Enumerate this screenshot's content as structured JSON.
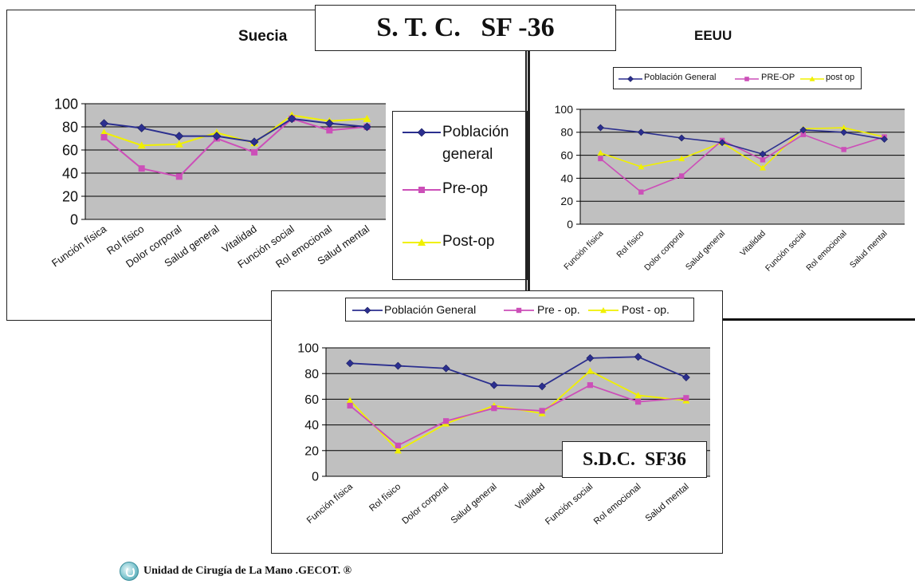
{
  "main_title": "S. T. C.   SF -36",
  "footer_text": "Unidad de Cirugía de La Mano .GECOT. ®",
  "colors": {
    "general": "#2b2f8f",
    "pre": "#cc4fb8",
    "post": "#f0f000",
    "plot_bg": "#c0c0c0"
  },
  "chart_data": [
    {
      "id": "suecia",
      "type": "line",
      "title": "Suecia",
      "categories": [
        "Función física",
        "Rol físico",
        "Dolor corporal",
        "Salud general",
        "Vitalidad",
        "Función social",
        "Rol emocional",
        "Salud mental"
      ],
      "ylim": [
        0,
        100
      ],
      "yticks": [
        0,
        20,
        40,
        60,
        80,
        100
      ],
      "grid": true,
      "legend_position": "right",
      "series": [
        {
          "key": "general",
          "name": "Población general",
          "marker": "diamond",
          "values": [
            83,
            79,
            72,
            72,
            67,
            87,
            83,
            80
          ]
        },
        {
          "key": "pre",
          "name": "Pre-op",
          "marker": "square",
          "values": [
            71,
            44,
            37,
            70,
            58,
            87,
            77,
            80
          ]
        },
        {
          "key": "post",
          "name": "Post-op",
          "marker": "triangle",
          "values": [
            75,
            64,
            65,
            75,
            66,
            90,
            85,
            87
          ]
        }
      ]
    },
    {
      "id": "eeuu",
      "type": "line",
      "title": "EEUU",
      "categories": [
        "Función física",
        "Rol físico",
        "Dolor corporal",
        "Salud general",
        "Vitalidad",
        "Función social",
        "Rol emocional",
        "Salud mental"
      ],
      "ylim": [
        0,
        100
      ],
      "yticks": [
        0,
        20,
        40,
        60,
        80,
        100
      ],
      "grid": true,
      "legend_position": "top",
      "series": [
        {
          "key": "general",
          "name": "Población General",
          "marker": "diamond",
          "values": [
            84,
            80,
            75,
            71,
            61,
            82,
            80,
            74
          ]
        },
        {
          "key": "pre",
          "name": "PRE-OP",
          "marker": "square",
          "values": [
            57,
            28,
            42,
            73,
            56,
            78,
            65,
            76
          ]
        },
        {
          "key": "post",
          "name": "post op",
          "marker": "triangle",
          "values": [
            62,
            50,
            57,
            71,
            49,
            83,
            84,
            76
          ]
        }
      ]
    },
    {
      "id": "sdc",
      "type": "line",
      "title": "S.D.C.  SF36",
      "categories": [
        "Función física",
        "Rol físico",
        "Dolor corporal",
        "Salud general",
        "Vitalidad",
        "Función social",
        "Rol emocional",
        "Salud mental"
      ],
      "ylim": [
        0,
        100
      ],
      "yticks": [
        0,
        20,
        40,
        60,
        80,
        100
      ],
      "grid": true,
      "legend_position": "top",
      "series": [
        {
          "key": "general",
          "name": "Población General",
          "marker": "diamond",
          "values": [
            88,
            86,
            84,
            71,
            70,
            92,
            93,
            77
          ]
        },
        {
          "key": "pre",
          "name": "Pre - op.",
          "marker": "square",
          "values": [
            55,
            24,
            43,
            53,
            51,
            71,
            58,
            61
          ]
        },
        {
          "key": "post",
          "name": "Post - op.",
          "marker": "triangle",
          "values": [
            59,
            20,
            41,
            55,
            49,
            82,
            63,
            59
          ]
        }
      ]
    }
  ]
}
